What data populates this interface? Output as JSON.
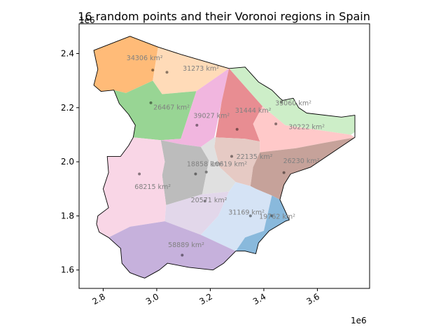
{
  "title": "16 random points and their Voronoi regions in Spain",
  "colors": {
    "outline": "#000000",
    "label_text": "#808080",
    "background": "#ffffff"
  },
  "chart_data": {
    "type": "map",
    "title": "16 random points and their Voronoi regions in Spain",
    "x_offset_label": "1e6",
    "y_offset_label": "1e6",
    "xlim": [
      2.71,
      3.795
    ],
    "ylim": [
      1.532,
      2.51
    ],
    "x_ticks": [
      {
        "value": 2.8,
        "label": "2.8"
      },
      {
        "value": 3.0,
        "label": "3.0"
      },
      {
        "value": 3.2,
        "label": "3.2"
      },
      {
        "value": 3.4,
        "label": "3.4"
      },
      {
        "value": 3.6,
        "label": "3.6"
      }
    ],
    "y_ticks": [
      {
        "value": 1.6,
        "label": "1.6"
      },
      {
        "value": 1.8,
        "label": "1.8"
      },
      {
        "value": 2.0,
        "label": "2.0"
      },
      {
        "value": 2.2,
        "label": "2.2"
      },
      {
        "value": 2.4,
        "label": "2.4"
      }
    ],
    "regions": [
      {
        "id": "r1",
        "area_label": "34306 km²",
        "color": "#ffbb78",
        "point": [
          2.985,
          2.339
        ],
        "label_pos": [
          2.955,
          2.375
        ],
        "polygon": [
          [
            2.765,
            2.283
          ],
          [
            2.78,
            2.342
          ],
          [
            2.765,
            2.412
          ],
          [
            2.9,
            2.464
          ],
          [
            3.005,
            2.424
          ],
          [
            2.985,
            2.3
          ],
          [
            2.885,
            2.254
          ],
          [
            2.84,
            2.265
          ],
          [
            2.792,
            2.26
          ]
        ]
      },
      {
        "id": "r2",
        "area_label": "31273 km²",
        "color": "#ffdbb8",
        "point": [
          3.038,
          2.331
        ],
        "label_pos": [
          3.165,
          2.337
        ],
        "polygon": [
          [
            3.005,
            2.424
          ],
          [
            3.09,
            2.397
          ],
          [
            3.27,
            2.345
          ],
          [
            3.148,
            2.261
          ],
          [
            3.02,
            2.25
          ],
          [
            2.985,
            2.3
          ]
        ]
      },
      {
        "id": "r3",
        "area_label": "26467 km²",
        "color": "#98d594",
        "point": [
          2.978,
          2.218
        ],
        "label_pos": [
          3.055,
          2.193
        ],
        "polygon": [
          [
            2.84,
            2.265
          ],
          [
            2.885,
            2.254
          ],
          [
            2.985,
            2.3
          ],
          [
            3.02,
            2.25
          ],
          [
            3.148,
            2.261
          ],
          [
            3.09,
            2.085
          ],
          [
            3.015,
            2.08
          ],
          [
            2.912,
            2.09
          ],
          [
            2.92,
            2.135
          ],
          [
            2.895,
            2.175
          ],
          [
            2.86,
            2.215
          ]
        ]
      },
      {
        "id": "r4",
        "area_label": "33060 km²",
        "color": "#cdeec8",
        "point": [
          3.465,
          2.22
        ],
        "label_pos": [
          3.51,
          2.208
        ],
        "polygon": [
          [
            3.27,
            2.345
          ],
          [
            3.33,
            2.35
          ],
          [
            3.38,
            2.295
          ],
          [
            3.43,
            2.265
          ],
          [
            3.46,
            2.235
          ],
          [
            3.47,
            2.227
          ],
          [
            3.51,
            2.235
          ],
          [
            3.53,
            2.2
          ],
          [
            3.56,
            2.18
          ],
          [
            3.69,
            2.165
          ],
          [
            3.74,
            2.172
          ],
          [
            3.74,
            2.11
          ],
          [
            3.725,
            2.1
          ],
          [
            3.48,
            2.135
          ],
          [
            3.395,
            2.205
          ],
          [
            3.27,
            2.345
          ]
        ]
      },
      {
        "id": "r5",
        "area_label": "39027 km²",
        "color": "#f1b6df",
        "point": [
          3.15,
          2.135
        ],
        "label_pos": [
          3.205,
          2.162
        ],
        "polygon": [
          [
            3.148,
            2.261
          ],
          [
            3.27,
            2.345
          ],
          [
            3.242,
            2.22
          ],
          [
            3.215,
            2.09
          ],
          [
            3.165,
            2.055
          ],
          [
            3.09,
            2.065
          ],
          [
            3.015,
            2.08
          ],
          [
            3.09,
            2.085
          ]
        ]
      },
      {
        "id": "r6",
        "area_label": "31444 km²",
        "color": "#e88d92",
        "point": [
          3.3,
          2.12
        ],
        "label_pos": [
          3.36,
          2.182
        ],
        "polygon": [
          [
            3.27,
            2.345
          ],
          [
            3.395,
            2.205
          ],
          [
            3.36,
            2.14
          ],
          [
            3.385,
            2.075
          ],
          [
            3.33,
            2.085
          ],
          [
            3.22,
            2.09
          ],
          [
            3.242,
            2.22
          ]
        ]
      },
      {
        "id": "r7",
        "area_label": "30222 km²",
        "color": "#ffc9c9",
        "point": [
          3.445,
          2.14
        ],
        "label_pos": [
          3.56,
          2.12
        ],
        "polygon": [
          [
            3.395,
            2.205
          ],
          [
            3.48,
            2.135
          ],
          [
            3.725,
            2.1
          ],
          [
            3.74,
            2.09
          ],
          [
            3.625,
            2.07
          ],
          [
            3.52,
            2.05
          ],
          [
            3.385,
            2.035
          ],
          [
            3.385,
            2.075
          ],
          [
            3.36,
            2.14
          ]
        ]
      },
      {
        "id": "r8",
        "area_label": "22135 km²",
        "color": "#e6cac4",
        "point": [
          3.28,
          2.02
        ],
        "label_pos": [
          3.365,
          2.011
        ],
        "polygon": [
          [
            3.22,
            2.09
          ],
          [
            3.33,
            2.085
          ],
          [
            3.385,
            2.075
          ],
          [
            3.385,
            2.035
          ],
          [
            3.36,
            1.98
          ],
          [
            3.35,
            1.91
          ],
          [
            3.295,
            1.925
          ],
          [
            3.235,
            1.98
          ],
          [
            3.215,
            2.055
          ]
        ]
      },
      {
        "id": "r9",
        "area_label": "26230 km²",
        "color": "#c6a29a",
        "point": [
          3.475,
          1.96
        ],
        "label_pos": [
          3.54,
          1.995
        ],
        "polygon": [
          [
            3.385,
            2.035
          ],
          [
            3.52,
            2.05
          ],
          [
            3.625,
            2.07
          ],
          [
            3.74,
            2.09
          ],
          [
            3.575,
            1.98
          ],
          [
            3.5,
            1.955
          ],
          [
            3.475,
            1.915
          ],
          [
            3.46,
            1.86
          ],
          [
            3.43,
            1.875
          ],
          [
            3.37,
            1.9
          ],
          [
            3.35,
            1.91
          ],
          [
            3.36,
            1.98
          ]
        ]
      },
      {
        "id": "r10",
        "area_label": "18858 km²",
        "color": "#bcbcbc",
        "point": [
          3.145,
          1.955
        ],
        "label_pos": [
          3.18,
          1.983
        ],
        "polygon": [
          [
            3.015,
            2.08
          ],
          [
            3.09,
            2.065
          ],
          [
            3.165,
            2.055
          ],
          [
            3.195,
            2.005
          ],
          [
            3.17,
            1.88
          ],
          [
            3.035,
            1.84
          ],
          [
            3.02,
            1.95
          ],
          [
            3.03,
            2.0
          ]
        ]
      },
      {
        "id": "r11",
        "area_label": "10619 km²",
        "color": "#e0e0e0",
        "point": [
          3.185,
          1.962
        ],
        "label_pos": [
          3.27,
          1.983
        ],
        "polygon": [
          [
            3.165,
            2.055
          ],
          [
            3.215,
            2.09
          ],
          [
            3.22,
            2.09
          ],
          [
            3.215,
            2.055
          ],
          [
            3.235,
            1.98
          ],
          [
            3.295,
            1.925
          ],
          [
            3.27,
            1.89
          ],
          [
            3.17,
            1.88
          ],
          [
            3.195,
            2.005
          ]
        ]
      },
      {
        "id": "r12",
        "area_label": "68215 km²",
        "color": "#f9d6e6",
        "point": [
          2.935,
          1.955
        ],
        "label_pos": [
          2.985,
          1.9
        ],
        "polygon": [
          [
            2.912,
            2.09
          ],
          [
            3.015,
            2.08
          ],
          [
            3.03,
            2.0
          ],
          [
            3.02,
            1.95
          ],
          [
            3.035,
            1.84
          ],
          [
            3.03,
            1.78
          ],
          [
            2.9,
            1.76
          ],
          [
            2.82,
            1.72
          ],
          [
            2.785,
            1.74
          ],
          [
            2.775,
            1.77
          ],
          [
            2.78,
            1.8
          ],
          [
            2.82,
            1.83
          ],
          [
            2.8,
            1.9
          ],
          [
            2.82,
            1.96
          ],
          [
            2.815,
            2.02
          ],
          [
            2.865,
            2.02
          ],
          [
            2.895,
            2.06
          ]
        ]
      },
      {
        "id": "r13",
        "area_label": "20571 km²",
        "color": "#e2d7ea",
        "point": [
          3.18,
          1.855
        ],
        "label_pos": [
          3.195,
          1.85
        ],
        "polygon": [
          [
            3.035,
            1.84
          ],
          [
            3.17,
            1.88
          ],
          [
            3.27,
            1.89
          ],
          [
            3.23,
            1.8
          ],
          [
            3.165,
            1.73
          ],
          [
            3.03,
            1.78
          ]
        ]
      },
      {
        "id": "r14",
        "area_label": "31169 km²",
        "color": "#d5e3f5",
        "point": [
          3.35,
          1.8
        ],
        "label_pos": [
          3.335,
          1.805
        ],
        "polygon": [
          [
            3.27,
            1.89
          ],
          [
            3.295,
            1.925
          ],
          [
            3.35,
            1.91
          ],
          [
            3.37,
            1.9
          ],
          [
            3.43,
            1.875
          ],
          [
            3.4,
            1.745
          ],
          [
            3.33,
            1.72
          ],
          [
            3.295,
            1.67
          ],
          [
            3.165,
            1.73
          ],
          [
            3.23,
            1.8
          ]
        ]
      },
      {
        "id": "r15",
        "area_label": "19762 km²",
        "color": "#89b9dc",
        "point": [
          3.43,
          1.8
        ],
        "label_pos": [
          3.45,
          1.79
        ],
        "polygon": [
          [
            3.43,
            1.875
          ],
          [
            3.46,
            1.86
          ],
          [
            3.495,
            1.785
          ],
          [
            3.48,
            1.78
          ],
          [
            3.42,
            1.745
          ],
          [
            3.38,
            1.7
          ],
          [
            3.37,
            1.66
          ],
          [
            3.33,
            1.67
          ],
          [
            3.295,
            1.67
          ],
          [
            3.33,
            1.72
          ],
          [
            3.4,
            1.745
          ]
        ]
      },
      {
        "id": "r16",
        "area_label": "58889 km²",
        "color": "#c6b1dc",
        "point": [
          3.095,
          1.655
        ],
        "label_pos": [
          3.11,
          1.685
        ],
        "polygon": [
          [
            2.82,
            1.72
          ],
          [
            2.9,
            1.76
          ],
          [
            3.03,
            1.78
          ],
          [
            3.165,
            1.73
          ],
          [
            3.295,
            1.67
          ],
          [
            3.25,
            1.625
          ],
          [
            3.21,
            1.6
          ],
          [
            3.12,
            1.61
          ],
          [
            3.04,
            1.625
          ],
          [
            3.01,
            1.6
          ],
          [
            2.955,
            1.57
          ],
          [
            2.94,
            1.575
          ],
          [
            2.9,
            1.59
          ],
          [
            2.87,
            1.625
          ],
          [
            2.865,
            1.68
          ]
        ]
      }
    ],
    "outline": [
      [
        2.765,
        2.283
      ],
      [
        2.78,
        2.342
      ],
      [
        2.765,
        2.412
      ],
      [
        2.9,
        2.464
      ],
      [
        3.005,
        2.424
      ],
      [
        3.09,
        2.397
      ],
      [
        3.27,
        2.345
      ],
      [
        3.33,
        2.35
      ],
      [
        3.38,
        2.295
      ],
      [
        3.43,
        2.265
      ],
      [
        3.46,
        2.235
      ],
      [
        3.47,
        2.227
      ],
      [
        3.51,
        2.235
      ],
      [
        3.53,
        2.2
      ],
      [
        3.56,
        2.18
      ],
      [
        3.69,
        2.165
      ],
      [
        3.74,
        2.172
      ],
      [
        3.74,
        2.09
      ],
      [
        3.575,
        1.98
      ],
      [
        3.5,
        1.955
      ],
      [
        3.475,
        1.915
      ],
      [
        3.46,
        1.86
      ],
      [
        3.495,
        1.785
      ],
      [
        3.48,
        1.78
      ],
      [
        3.42,
        1.745
      ],
      [
        3.38,
        1.7
      ],
      [
        3.37,
        1.66
      ],
      [
        3.33,
        1.67
      ],
      [
        3.295,
        1.67
      ],
      [
        3.25,
        1.625
      ],
      [
        3.21,
        1.6
      ],
      [
        3.12,
        1.61
      ],
      [
        3.04,
        1.625
      ],
      [
        3.01,
        1.6
      ],
      [
        2.955,
        1.57
      ],
      [
        2.94,
        1.575
      ],
      [
        2.9,
        1.59
      ],
      [
        2.87,
        1.625
      ],
      [
        2.865,
        1.68
      ],
      [
        2.82,
        1.72
      ],
      [
        2.785,
        1.74
      ],
      [
        2.775,
        1.77
      ],
      [
        2.78,
        1.8
      ],
      [
        2.82,
        1.83
      ],
      [
        2.8,
        1.9
      ],
      [
        2.82,
        1.96
      ],
      [
        2.815,
        2.02
      ],
      [
        2.865,
        2.02
      ],
      [
        2.895,
        2.06
      ],
      [
        2.912,
        2.09
      ],
      [
        2.92,
        2.135
      ],
      [
        2.895,
        2.175
      ],
      [
        2.86,
        2.215
      ],
      [
        2.84,
        2.265
      ],
      [
        2.792,
        2.26
      ]
    ]
  }
}
